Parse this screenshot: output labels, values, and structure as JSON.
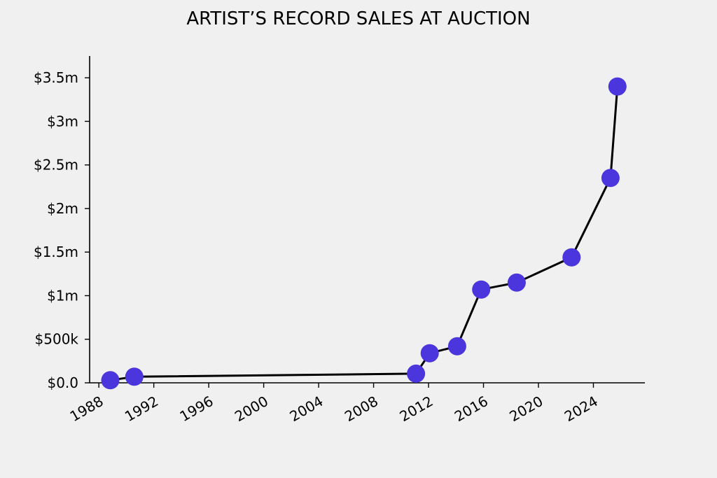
{
  "chart_data": {
    "type": "line",
    "title": "ARTIST’S RECORD SALES AT AUCTION",
    "xlabel": "",
    "ylabel": "",
    "x_axis": {
      "type": "date",
      "range": [
        "1987-05-01",
        "2027-10-01"
      ]
    },
    "y_axis": {
      "range": [
        0,
        3750000
      ]
    },
    "x_ticks": [
      {
        "value": "1988-01-01",
        "label": "1988"
      },
      {
        "value": "1992-01-01",
        "label": "1992"
      },
      {
        "value": "1996-01-01",
        "label": "1996"
      },
      {
        "value": "2000-01-01",
        "label": "2000"
      },
      {
        "value": "2004-01-01",
        "label": "2004"
      },
      {
        "value": "2008-01-01",
        "label": "2008"
      },
      {
        "value": "2012-01-01",
        "label": "2012"
      },
      {
        "value": "2016-01-01",
        "label": "2016"
      },
      {
        "value": "2020-01-01",
        "label": "2020"
      },
      {
        "value": "2024-01-01",
        "label": "2024"
      }
    ],
    "y_ticks": [
      {
        "value": 0,
        "label": "$0.0"
      },
      {
        "value": 500000,
        "label": "$500k"
      },
      {
        "value": 1000000,
        "label": "$1m"
      },
      {
        "value": 1500000,
        "label": "$1.5m"
      },
      {
        "value": 2000000,
        "label": "$2m"
      },
      {
        "value": 2500000,
        "label": "$2.5m"
      },
      {
        "value": 3000000,
        "label": "$3m"
      },
      {
        "value": 3500000,
        "label": "$3.5m"
      }
    ],
    "series": [
      {
        "points": [
          {
            "x": "1988-11-01",
            "y": 30000
          },
          {
            "x": "1990-08-01",
            "y": 70000
          },
          {
            "x": "2011-02-01",
            "y": 105000
          },
          {
            "x": "2012-02-01",
            "y": 340000
          },
          {
            "x": "2014-02-01",
            "y": 420000
          },
          {
            "x": "2015-11-01",
            "y": 1070000
          },
          {
            "x": "2018-06-01",
            "y": 1150000
          },
          {
            "x": "2022-06-01",
            "y": 1440000
          },
          {
            "x": "2025-04-01",
            "y": 2350000
          },
          {
            "x": "2025-10-01",
            "y": 3400000
          }
        ]
      }
    ],
    "grid": false,
    "colors": {
      "marker": "#4b35dc",
      "line": "#000000",
      "background": "#f0f0f0"
    }
  }
}
